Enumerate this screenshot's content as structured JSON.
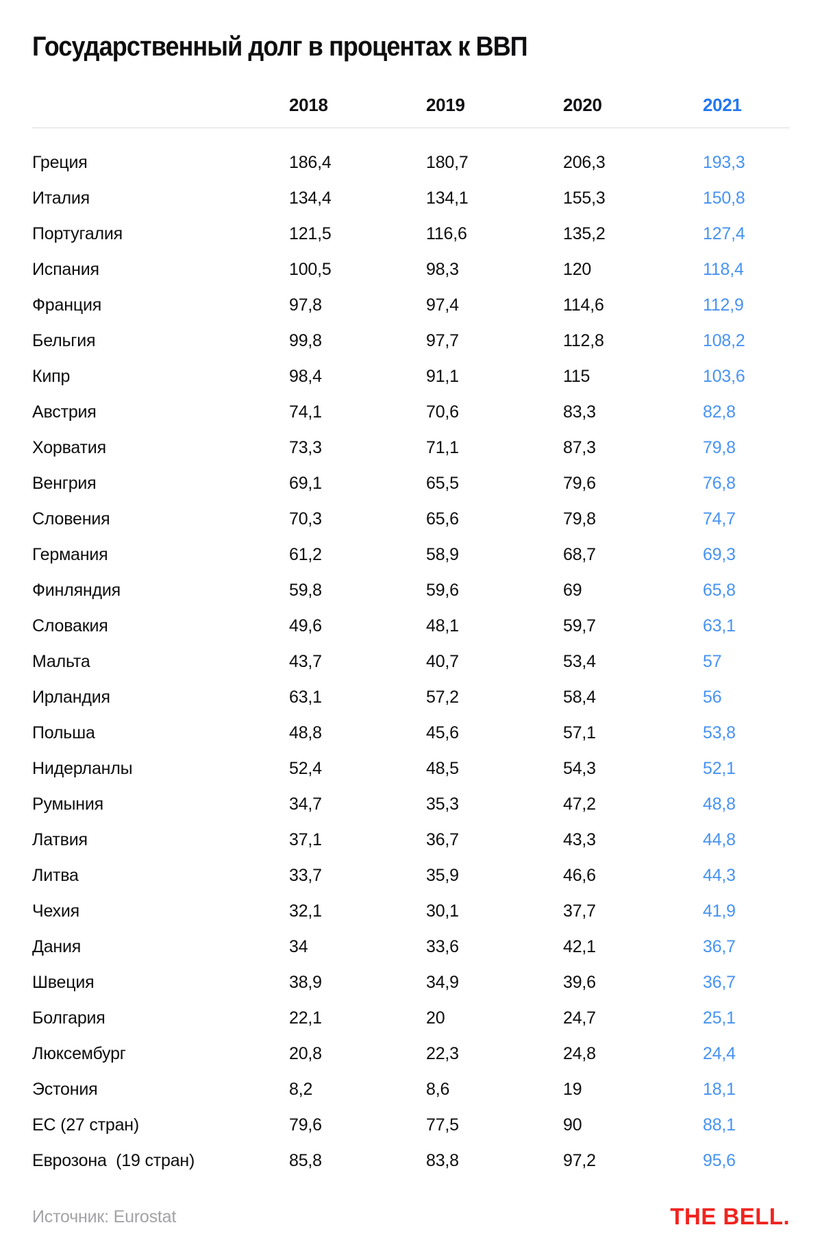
{
  "title": "Государственный долг в процентах к ВВП",
  "table": {
    "year_headers": [
      "2018",
      "2019",
      "2020",
      "2021"
    ],
    "highlighted_year": "2021",
    "rows": [
      {
        "country": "Греция",
        "display": [
          "186,4",
          "180,7",
          "206,3",
          "193,3"
        ]
      },
      {
        "country": "Италия",
        "display": [
          "134,4",
          "134,1",
          "155,3",
          "150,8"
        ]
      },
      {
        "country": "Португалия",
        "display": [
          "121,5",
          "116,6",
          "135,2",
          "127,4"
        ]
      },
      {
        "country": "Испания",
        "display": [
          "100,5",
          "98,3",
          "120",
          "118,4"
        ]
      },
      {
        "country": "Франция",
        "display": [
          "97,8",
          "97,4",
          "114,6",
          "112,9"
        ]
      },
      {
        "country": "Бельгия",
        "display": [
          "99,8",
          "97,7",
          "112,8",
          "108,2"
        ]
      },
      {
        "country": "Кипр",
        "display": [
          "98,4",
          "91,1",
          "115",
          "103,6"
        ]
      },
      {
        "country": "Австрия",
        "display": [
          "74,1",
          "70,6",
          "83,3",
          "82,8"
        ]
      },
      {
        "country": "Хорватия",
        "display": [
          "73,3",
          "71,1",
          "87,3",
          "79,8"
        ]
      },
      {
        "country": "Венгрия",
        "display": [
          "69,1",
          "65,5",
          "79,6",
          "76,8"
        ]
      },
      {
        "country": "Словения",
        "display": [
          "70,3",
          "65,6",
          "79,8",
          "74,7"
        ]
      },
      {
        "country": "Германия",
        "display": [
          "61,2",
          "58,9",
          "68,7",
          "69,3"
        ]
      },
      {
        "country": "Финляндия",
        "display": [
          "59,8",
          "59,6",
          "69",
          "65,8"
        ]
      },
      {
        "country": "Словакия",
        "display": [
          "49,6",
          "48,1",
          "59,7",
          "63,1"
        ]
      },
      {
        "country": "Мальта",
        "display": [
          "43,7",
          "40,7",
          "53,4",
          "57"
        ]
      },
      {
        "country": "Ирландия",
        "display": [
          "63,1",
          "57,2",
          "58,4",
          "56"
        ]
      },
      {
        "country": "Польша",
        "display": [
          "48,8",
          "45,6",
          "57,1",
          "53,8"
        ]
      },
      {
        "country": "Нидерланлы",
        "display": [
          "52,4",
          "48,5",
          "54,3",
          "52,1"
        ]
      },
      {
        "country": "Румыния",
        "display": [
          "34,7",
          "35,3",
          "47,2",
          "48,8"
        ]
      },
      {
        "country": "Латвия",
        "display": [
          "37,1",
          "36,7",
          "43,3",
          "44,8"
        ]
      },
      {
        "country": "Литва",
        "display": [
          "33,7",
          "35,9",
          "46,6",
          "44,3"
        ]
      },
      {
        "country": "Чехия",
        "display": [
          "32,1",
          "30,1",
          "37,7",
          "41,9"
        ]
      },
      {
        "country": "Дания",
        "display": [
          "34",
          "33,6",
          "42,1",
          "36,7"
        ]
      },
      {
        "country": "Швеция",
        "display": [
          "38,9",
          "34,9",
          "39,6",
          "36,7"
        ]
      },
      {
        "country": "Болгария",
        "display": [
          "22,1",
          "20",
          "24,7",
          "25,1"
        ]
      },
      {
        "country": "Люксембург",
        "display": [
          "20,8",
          "22,3",
          "24,8",
          "24,4"
        ]
      },
      {
        "country": "Эстония",
        "display": [
          "8,2",
          "8,6",
          "19",
          "18,1"
        ]
      },
      {
        "country": "ЕС (27 стран)",
        "display": [
          "79,6",
          "77,5",
          "90",
          "88,1"
        ]
      },
      {
        "country": "Еврозона  (19 стран)",
        "display": [
          "85,8",
          "83,8",
          "97,2",
          "95,6"
        ]
      }
    ]
  },
  "footer": {
    "source": "Источник: Eurostat",
    "logo": "THE BELL."
  },
  "colors": {
    "year_2021_header_blue": "#2277f2",
    "year_2021_value_blue": "#4793f2",
    "logo_red": "#f0241f",
    "text_black": "#0e0e10",
    "source_gray": "#a2a2a7",
    "divider_gray": "#dbdbdd"
  },
  "chart_data": {
    "type": "table",
    "title": "Государственный долг в процентах к ВВП",
    "columns": [
      "2018",
      "2019",
      "2020",
      "2021"
    ],
    "rows": [
      {
        "label": "Греция",
        "values": [
          186.4,
          180.7,
          206.3,
          193.3
        ]
      },
      {
        "label": "Италия",
        "values": [
          134.4,
          134.1,
          155.3,
          150.8
        ]
      },
      {
        "label": "Португалия",
        "values": [
          121.5,
          116.6,
          135.2,
          127.4
        ]
      },
      {
        "label": "Испания",
        "values": [
          100.5,
          98.3,
          120,
          118.4
        ]
      },
      {
        "label": "Франция",
        "values": [
          97.8,
          97.4,
          114.6,
          112.9
        ]
      },
      {
        "label": "Бельгия",
        "values": [
          99.8,
          97.7,
          112.8,
          108.2
        ]
      },
      {
        "label": "Кипр",
        "values": [
          98.4,
          91.1,
          115,
          103.6
        ]
      },
      {
        "label": "Австрия",
        "values": [
          74.1,
          70.6,
          83.3,
          82.8
        ]
      },
      {
        "label": "Хорватия",
        "values": [
          73.3,
          71.1,
          87.3,
          79.8
        ]
      },
      {
        "label": "Венгрия",
        "values": [
          69.1,
          65.5,
          79.6,
          76.8
        ]
      },
      {
        "label": "Словения",
        "values": [
          70.3,
          65.6,
          79.8,
          74.7
        ]
      },
      {
        "label": "Германия",
        "values": [
          61.2,
          58.9,
          68.7,
          69.3
        ]
      },
      {
        "label": "Финляндия",
        "values": [
          59.8,
          59.6,
          69,
          65.8
        ]
      },
      {
        "label": "Словакия",
        "values": [
          49.6,
          48.1,
          59.7,
          63.1
        ]
      },
      {
        "label": "Мальта",
        "values": [
          43.7,
          40.7,
          53.4,
          57
        ]
      },
      {
        "label": "Ирландия",
        "values": [
          63.1,
          57.2,
          58.4,
          56
        ]
      },
      {
        "label": "Польша",
        "values": [
          48.8,
          45.6,
          57.1,
          53.8
        ]
      },
      {
        "label": "Нидерланлы",
        "values": [
          52.4,
          48.5,
          54.3,
          52.1
        ]
      },
      {
        "label": "Румыния",
        "values": [
          34.7,
          35.3,
          47.2,
          48.8
        ]
      },
      {
        "label": "Латвия",
        "values": [
          37.1,
          36.7,
          43.3,
          44.8
        ]
      },
      {
        "label": "Литва",
        "values": [
          33.7,
          35.9,
          46.6,
          44.3
        ]
      },
      {
        "label": "Чехия",
        "values": [
          32.1,
          30.1,
          37.7,
          41.9
        ]
      },
      {
        "label": "Дания",
        "values": [
          34,
          33.6,
          42.1,
          36.7
        ]
      },
      {
        "label": "Швеция",
        "values": [
          38.9,
          34.9,
          39.6,
          36.7
        ]
      },
      {
        "label": "Болгария",
        "values": [
          22.1,
          20,
          24.7,
          25.1
        ]
      },
      {
        "label": "Люксембург",
        "values": [
          20.8,
          22.3,
          24.8,
          24.4
        ]
      },
      {
        "label": "Эстония",
        "values": [
          8.2,
          8.6,
          19,
          18.1
        ]
      },
      {
        "label": "ЕС (27 стран)",
        "values": [
          79.6,
          77.5,
          90,
          88.1
        ]
      },
      {
        "label": "Еврозона (19 стран)",
        "values": [
          85.8,
          83.8,
          97.2,
          95.6
        ]
      }
    ],
    "source": "Eurostat",
    "notes": "Values are percent of GDP; 2021 column highlighted in blue"
  }
}
